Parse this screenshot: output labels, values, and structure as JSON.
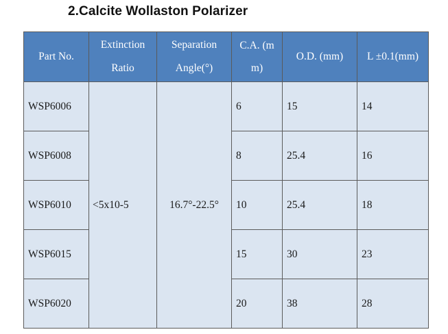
{
  "title": "2.Calcite Wollaston Polarizer",
  "colors": {
    "header_bg": "#4f81bd",
    "cell_bg": "#dbe5f1",
    "border": "#5a5a5a"
  },
  "table": {
    "headers": [
      "Part No.",
      "Extinction Ratio",
      "Separation Angle(°)",
      "C.A. (mm)",
      "O.D. (mm)",
      "L ±0.1(mm)"
    ],
    "header_lines": {
      "extinction": [
        "Extinction",
        "Ratio"
      ],
      "separation": [
        "Separation",
        "Angle(°)"
      ],
      "ca": [
        "C.A. (m",
        "m)"
      ]
    },
    "extinction_ratio": "<5x10-5",
    "separation_angle": "16.7°-22.5°",
    "rows": [
      {
        "part": "WSP6006",
        "ca": "6",
        "od": "15",
        "l": "14"
      },
      {
        "part": "WSP6008",
        "ca": "8",
        "od": "25.4",
        "l": "16"
      },
      {
        "part": "WSP6010",
        "ca": "10",
        "od": "25.4",
        "l": "18"
      },
      {
        "part": "WSP6015",
        "ca": "15",
        "od": "30",
        "l": "23"
      },
      {
        "part": "WSP6020",
        "ca": "20",
        "od": "38",
        "l": "28"
      }
    ]
  }
}
